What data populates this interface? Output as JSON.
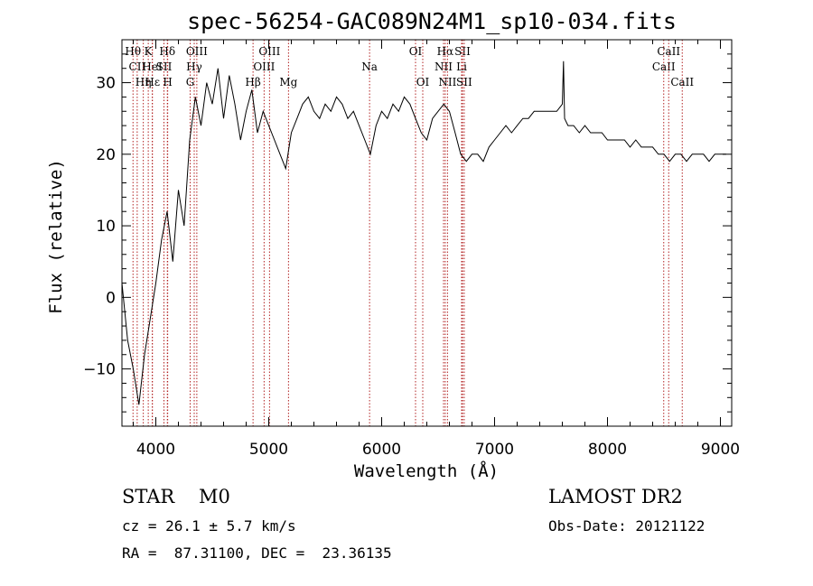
{
  "chart_data": {
    "type": "line",
    "title": "spec-56254-GAC089N24M1_sp10-034.fits",
    "xlabel": "Wavelength (Å)",
    "ylabel": "Flux (relative)",
    "xlim": [
      3700,
      9100
    ],
    "ylim": [
      -18,
      36
    ],
    "xticks": [
      4000,
      5000,
      6000,
      7000,
      8000,
      9000
    ],
    "yticks": [
      -10,
      0,
      10,
      20,
      30
    ],
    "grid": false,
    "line_color": "#000000",
    "marker_color": "#b22222",
    "series": [
      {
        "x": [
          3700,
          3750,
          3800,
          3850,
          3900,
          3950,
          4000,
          4050,
          4100,
          4150,
          4200,
          4250,
          4300,
          4350,
          4400,
          4450,
          4500,
          4550,
          4600,
          4650,
          4700,
          4750,
          4800,
          4850,
          4900,
          4950,
          5000,
          5050,
          5100,
          5150,
          5200,
          5250,
          5300,
          5350,
          5400,
          5450,
          5500,
          5550,
          5600,
          5650,
          5700,
          5750,
          5800,
          5850,
          5900,
          5950,
          6000,
          6050,
          6100,
          6150,
          6200,
          6250,
          6300,
          6350,
          6400,
          6450,
          6500,
          6550,
          6600,
          6650,
          6700,
          6750,
          6800,
          6850,
          6900,
          6950,
          7000,
          7050,
          7100,
          7150,
          7200,
          7250,
          7300,
          7350,
          7400,
          7450,
          7500,
          7550,
          7600,
          7610,
          7620,
          7650,
          7700,
          7750,
          7800,
          7850,
          7900,
          7950,
          8000,
          8050,
          8100,
          8150,
          8200,
          8250,
          8300,
          8350,
          8400,
          8450,
          8500,
          8550,
          8600,
          8650,
          8700,
          8750,
          8800,
          8850,
          8900,
          8950,
          9000,
          9050
        ],
        "y": [
          2,
          -6,
          -10,
          -15,
          -8,
          -3,
          2,
          8,
          12,
          5,
          15,
          10,
          22,
          28,
          24,
          30,
          27,
          32,
          25,
          31,
          27,
          22,
          26,
          29,
          23,
          26,
          24,
          22,
          20,
          18,
          23,
          25,
          27,
          28,
          26,
          25,
          27,
          26,
          28,
          27,
          25,
          26,
          24,
          22,
          20,
          24,
          26,
          25,
          27,
          26,
          28,
          27,
          25,
          23,
          22,
          25,
          26,
          27,
          26,
          23,
          20,
          19,
          20,
          20,
          19,
          21,
          22,
          23,
          24,
          23,
          24,
          25,
          25,
          26,
          26,
          26,
          26,
          26,
          27,
          33,
          25,
          24,
          24,
          23,
          24,
          23,
          23,
          23,
          22,
          22,
          22,
          22,
          21,
          22,
          21,
          21,
          21,
          20,
          20,
          19,
          20,
          20,
          19,
          20,
          20,
          20,
          19,
          20,
          20,
          20
        ]
      }
    ],
    "line_markers": [
      {
        "wl": 3798,
        "label": "Hθ",
        "row": 0
      },
      {
        "wl": 3835,
        "label": "CII",
        "row": 1
      },
      {
        "wl": 3889,
        "label": "Hη",
        "row": 2
      },
      {
        "wl": 3933,
        "label": "K",
        "row": 0
      },
      {
        "wl": 3968,
        "label": "HeI",
        "row": 1
      },
      {
        "wl": 3970,
        "label": "Hε",
        "row": 2
      },
      {
        "wl": 4072,
        "label": "SII",
        "row": 1
      },
      {
        "wl": 4102,
        "label": "Hδ",
        "row": 0
      },
      {
        "wl": 4105,
        "label": "H",
        "row": 2
      },
      {
        "wl": 4304,
        "label": "G",
        "row": 2
      },
      {
        "wl": 4340,
        "label": "Hγ",
        "row": 1
      },
      {
        "wl": 4363,
        "label": "OIII",
        "row": 0
      },
      {
        "wl": 4861,
        "label": "Hβ",
        "row": 2
      },
      {
        "wl": 4959,
        "label": "OIII",
        "row": 1
      },
      {
        "wl": 5007,
        "label": "OIII",
        "row": 0
      },
      {
        "wl": 5175,
        "label": "Mg",
        "row": 2
      },
      {
        "wl": 5893,
        "label": "Na",
        "row": 1
      },
      {
        "wl": 6300,
        "label": "OI",
        "row": 0
      },
      {
        "wl": 6364,
        "label": "OI",
        "row": 2
      },
      {
        "wl": 6548,
        "label": "NII",
        "row": 1
      },
      {
        "wl": 6563,
        "label": "Hα",
        "row": 0
      },
      {
        "wl": 6583,
        "label": "NII",
        "row": 2
      },
      {
        "wl": 6708,
        "label": "Li",
        "row": 1
      },
      {
        "wl": 6716,
        "label": "SII",
        "row": 0
      },
      {
        "wl": 6731,
        "label": "SII",
        "row": 2
      },
      {
        "wl": 8498,
        "label": "CaII",
        "row": 1
      },
      {
        "wl": 8542,
        "label": "CaII",
        "row": 0
      },
      {
        "wl": 8662,
        "label": "CaII",
        "row": 2
      }
    ]
  },
  "footer": {
    "object_class": "STAR",
    "subclass": "M0",
    "survey": "LAMOST DR2",
    "redshift": "cz = 26.1 ± 5.7 km/s",
    "obs_date": "Obs-Date: 20121122",
    "coords": "RA =  87.31100, DEC =  23.36135"
  }
}
